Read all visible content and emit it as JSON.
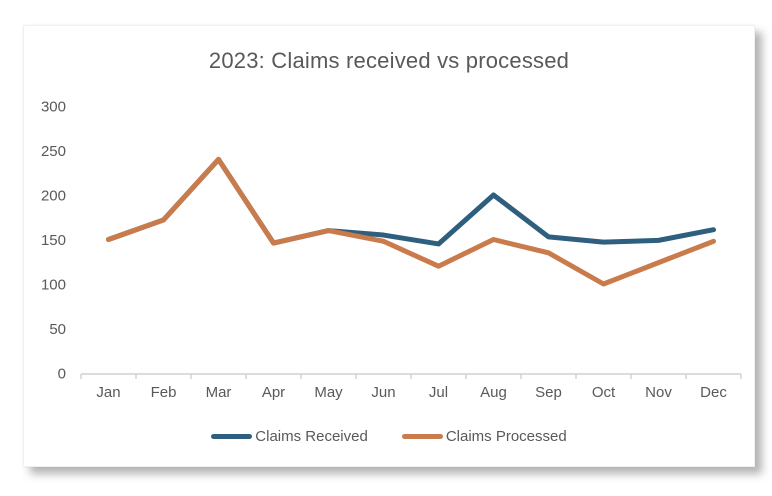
{
  "chart_data": {
    "type": "line",
    "title": "2023: Claims received vs processed",
    "categories": [
      "Jan",
      "Feb",
      "Mar",
      "Apr",
      "May",
      "Jun",
      "Jul",
      "Aug",
      "Sep",
      "Oct",
      "Nov",
      "Dec"
    ],
    "series": [
      {
        "name": "Claims Received",
        "color": "#2e5f7e",
        "values": [
          150,
          172,
          240,
          146,
          160,
          155,
          145,
          200,
          153,
          147,
          149,
          161
        ]
      },
      {
        "name": "Claims Processed",
        "color": "#c97b4b",
        "values": [
          150,
          172,
          240,
          146,
          160,
          148,
          120,
          150,
          135,
          100,
          124,
          148
        ]
      }
    ],
    "ylim": [
      0,
      300
    ],
    "yticks": [
      0,
      50,
      100,
      150,
      200,
      250,
      300
    ],
    "grid": false,
    "legend_position": "bottom",
    "xlabel": "",
    "ylabel": "",
    "text_color": "#595959",
    "axis_color": "#d0d0d0",
    "line_width": 5
  }
}
